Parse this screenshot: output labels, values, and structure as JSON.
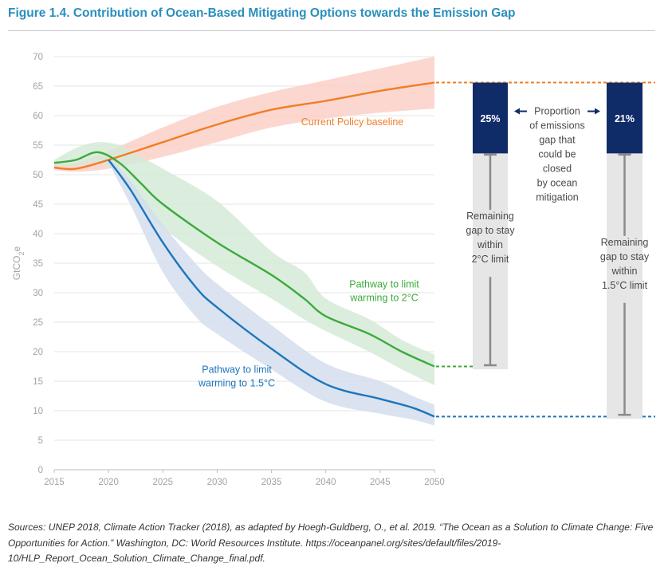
{
  "figure": {
    "title": "Figure 1.4. Contribution of Ocean-Based Mitigating Options towards the Emission Gap",
    "sources": "Sources: UNEP 2018, Climate Action Tracker (2018), as adapted by Hoegh-Guldberg, O., et al. 2019. “The Ocean as a Solution to Climate Change: Five Opportunities for Action.” Washington, DC: World Resources Institute. https://oceanpanel.org/sites/default/files/2019-10/HLP_Report_Ocean_Solution_Climate_Change_final.pdf."
  },
  "chart_data": {
    "type": "line",
    "ylabel": "GtCO2e",
    "ylim": [
      0,
      70
    ],
    "yticks": [
      0,
      5,
      10,
      15,
      20,
      25,
      30,
      35,
      40,
      45,
      50,
      55,
      60,
      65,
      70
    ],
    "xlim": [
      2015,
      2050
    ],
    "xticks": [
      2015,
      2020,
      2025,
      2030,
      2035,
      2040,
      2045,
      2050
    ],
    "grid": true,
    "series": [
      {
        "name": "Current Policy baseline",
        "label_lines": [
          "Current Policy baseline"
        ],
        "color": "#f07e26",
        "band_color": "#fbd0c8",
        "x": [
          2015,
          2017,
          2020,
          2025,
          2030,
          2035,
          2040,
          2045,
          2050
        ],
        "y": [
          51.2,
          51.0,
          52.5,
          55.5,
          58.5,
          61.0,
          62.5,
          64.2,
          65.6
        ],
        "band_low": [
          50.8,
          50.5,
          51.0,
          53.0,
          55.5,
          58.0,
          59.5,
          60.5,
          61.2
        ],
        "band_high": [
          52.0,
          52.0,
          54.0,
          58.0,
          61.5,
          64.0,
          66.0,
          68.0,
          70.0
        ]
      },
      {
        "name": "Pathway to limit warming to 2°C",
        "label_lines": [
          "Pathway to limit",
          "warming to 2°C"
        ],
        "color": "#3caa3c",
        "band_color": "#d5ead7",
        "x": [
          2015,
          2017,
          2019,
          2021,
          2023,
          2025,
          2030,
          2035,
          2038,
          2040,
          2044,
          2047,
          2050
        ],
        "y": [
          52.0,
          52.5,
          53.8,
          52.0,
          48.5,
          45.0,
          38.5,
          33.0,
          29.0,
          26.0,
          23.0,
          20.0,
          17.5
        ],
        "band_low": [
          51.5,
          51.5,
          52.0,
          50.0,
          45.0,
          41.0,
          34.5,
          29.0,
          25.5,
          23.5,
          20.0,
          17.0,
          14.3
        ],
        "band_high": [
          52.5,
          54.5,
          55.5,
          55.0,
          53.0,
          51.0,
          45.5,
          37.0,
          33.5,
          29.0,
          25.5,
          22.0,
          19.5
        ]
      },
      {
        "name": "Pathway to limit warming to 1.5°C",
        "label_lines": [
          "Pathway to limit",
          "warming to 1.5°C"
        ],
        "color": "#1c75bc",
        "band_color": "#d3deec",
        "x": [
          2020,
          2022,
          2025,
          2028,
          2030,
          2035,
          2040,
          2045,
          2048,
          2050
        ],
        "y": [
          52.5,
          47.5,
          38.5,
          31.0,
          27.5,
          20.5,
          14.5,
          12.0,
          10.5,
          9.0
        ],
        "band_low": [
          52.0,
          45.0,
          33.5,
          26.0,
          23.0,
          17.0,
          11.5,
          9.5,
          8.5,
          7.5
        ],
        "band_high": [
          53.0,
          49.0,
          41.5,
          35.0,
          31.5,
          24.5,
          18.0,
          15.0,
          12.5,
          11.0
        ]
      }
    ],
    "gap_bars": [
      {
        "target": "2°C",
        "ocean_share_label": "25%",
        "top": 65.6,
        "ocean_bottom": 53.6,
        "bottom": 17.7,
        "remaining_label_lines": [
          "Remaining",
          "gap to stay",
          "within",
          "2°C limit"
        ]
      },
      {
        "target": "1.5°C",
        "ocean_share_label": "21%",
        "top": 65.6,
        "ocean_bottom": 53.6,
        "bottom": 9.3,
        "remaining_label_lines": [
          "Remaining",
          "gap to stay",
          "within",
          "1.5°C limit"
        ]
      }
    ],
    "proportion_label_lines": [
      "Proportion",
      "of emissions",
      "gap that",
      "could be",
      "closed",
      "by ocean",
      "mitigation"
    ],
    "colors": {
      "gap_bar_fill": "#e6e6e6",
      "gap_bar_line": "#8a8a8a",
      "ocean_box": "#102c68",
      "ocean_box_text": "#ffffff",
      "annotation_text": "#4a4a4a",
      "axis_text": "#a3a3a3",
      "gridline": "#e4e4e4"
    }
  }
}
